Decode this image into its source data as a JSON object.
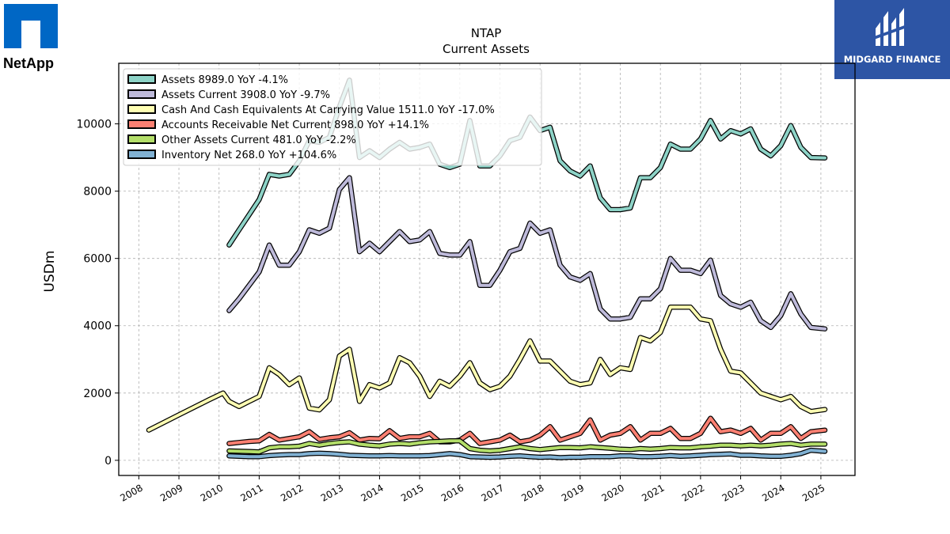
{
  "logos": {
    "left": {
      "text": "NetApp"
    },
    "right": {
      "text": "MIDGARD FINANCE"
    }
  },
  "chart_data": {
    "type": "line",
    "title": "NTAP",
    "subtitle": "Current  Assets",
    "ylabel": "USDm",
    "xlabel": "",
    "xlim": [
      2007.5,
      2025.85
    ],
    "ylim": [
      -450,
      11800
    ],
    "yticks": [
      0,
      2000,
      4000,
      6000,
      8000,
      10000
    ],
    "xticks": [
      2008,
      2009,
      2010,
      2011,
      2012,
      2013,
      2014,
      2015,
      2016,
      2017,
      2018,
      2019,
      2020,
      2021,
      2022,
      2023,
      2024,
      2025
    ],
    "grid": true,
    "legend_position": "top-left",
    "series": [
      {
        "name": "Assets  8989.0 YoY -4.1%",
        "color": "#8dd3c7",
        "x": [
          2010.25,
          2010.5,
          2010.75,
          2011.0,
          2011.25,
          2011.5,
          2011.75,
          2012.0,
          2012.25,
          2012.5,
          2012.75,
          2013.0,
          2013.25,
          2013.5,
          2013.75,
          2014.0,
          2014.25,
          2014.5,
          2014.75,
          2015.0,
          2015.25,
          2015.5,
          2015.75,
          2016.0,
          2016.25,
          2016.5,
          2016.75,
          2017.0,
          2017.25,
          2017.5,
          2017.75,
          2018.0,
          2018.25,
          2018.5,
          2018.75,
          2019.0,
          2019.25,
          2019.5,
          2019.75,
          2020.0,
          2020.25,
          2020.5,
          2020.75,
          2021.0,
          2021.25,
          2021.5,
          2021.75,
          2022.0,
          2022.25,
          2022.5,
          2022.75,
          2023.0,
          2023.25,
          2023.5,
          2023.75,
          2024.0,
          2024.25,
          2024.5,
          2024.75,
          2025.1
        ],
        "values": [
          6400,
          6850,
          7300,
          7750,
          8500,
          8450,
          8500,
          8900,
          9500,
          9450,
          9600,
          10500,
          11300,
          9000,
          9200,
          9000,
          9250,
          9450,
          9250,
          9300,
          9400,
          8800,
          8700,
          8800,
          10100,
          8750,
          8750,
          9050,
          9500,
          9600,
          10200,
          9800,
          9900,
          8900,
          8600,
          8450,
          8750,
          7800,
          7450,
          7450,
          7500,
          8400,
          8400,
          8700,
          9400,
          9250,
          9250,
          9550,
          10100,
          9550,
          9800,
          9700,
          9850,
          9250,
          9050,
          9350,
          9950,
          9300,
          9000,
          8989
        ]
      },
      {
        "name": "Assets Current  3908.0 YoY -9.7%",
        "color": "#bebada",
        "x": [
          2010.25,
          2010.5,
          2010.75,
          2011.0,
          2011.25,
          2011.5,
          2011.75,
          2012.0,
          2012.25,
          2012.5,
          2012.75,
          2013.0,
          2013.25,
          2013.5,
          2013.75,
          2014.0,
          2014.25,
          2014.5,
          2014.75,
          2015.0,
          2015.25,
          2015.5,
          2015.75,
          2016.0,
          2016.25,
          2016.5,
          2016.75,
          2017.0,
          2017.25,
          2017.5,
          2017.75,
          2018.0,
          2018.25,
          2018.5,
          2018.75,
          2019.0,
          2019.25,
          2019.5,
          2019.75,
          2020.0,
          2020.25,
          2020.5,
          2020.75,
          2021.0,
          2021.25,
          2021.5,
          2021.75,
          2022.0,
          2022.25,
          2022.5,
          2022.75,
          2023.0,
          2023.25,
          2023.5,
          2023.75,
          2024.0,
          2024.25,
          2024.5,
          2024.75,
          2025.1
        ],
        "values": [
          4450,
          4800,
          5200,
          5600,
          6400,
          5800,
          5800,
          6200,
          6850,
          6750,
          6900,
          8050,
          8400,
          6200,
          6450,
          6200,
          6500,
          6800,
          6500,
          6550,
          6800,
          6150,
          6100,
          6100,
          6500,
          5200,
          5200,
          5650,
          6200,
          6300,
          7050,
          6750,
          6850,
          5800,
          5450,
          5350,
          5550,
          4500,
          4200,
          4200,
          4250,
          4800,
          4800,
          5100,
          6000,
          5650,
          5650,
          5550,
          5950,
          4900,
          4650,
          4550,
          4700,
          4150,
          3950,
          4300,
          4950,
          4350,
          3950,
          3908
        ]
      },
      {
        "name": "Cash And Cash Equivalents At Carrying Value  1511.0 YoY -17.0%",
        "color": "#ffffb3",
        "x": [
          2008.25,
          2009.0,
          2009.75,
          2010.1,
          2010.25,
          2010.5,
          2010.75,
          2011.0,
          2011.25,
          2011.5,
          2011.75,
          2012.0,
          2012.25,
          2012.5,
          2012.75,
          2013.0,
          2013.25,
          2013.5,
          2013.75,
          2014.0,
          2014.25,
          2014.5,
          2014.75,
          2015.0,
          2015.25,
          2015.5,
          2015.75,
          2016.0,
          2016.25,
          2016.5,
          2016.75,
          2017.0,
          2017.25,
          2017.5,
          2017.75,
          2018.0,
          2018.25,
          2018.5,
          2018.75,
          2019.0,
          2019.25,
          2019.5,
          2019.75,
          2020.0,
          2020.25,
          2020.5,
          2020.75,
          2021.0,
          2021.25,
          2021.5,
          2021.75,
          2022.0,
          2022.25,
          2022.5,
          2022.75,
          2023.0,
          2023.25,
          2023.5,
          2023.75,
          2024.0,
          2024.25,
          2024.5,
          2024.75,
          2025.1
        ],
        "values": [
          900,
          1350,
          1800,
          2000,
          1750,
          1600,
          1750,
          1900,
          2750,
          2550,
          2250,
          2450,
          1550,
          1500,
          1800,
          3100,
          3300,
          1750,
          2250,
          2150,
          2300,
          3050,
          2900,
          2500,
          1900,
          2350,
          2200,
          2500,
          2900,
          2300,
          2100,
          2200,
          2500,
          3000,
          3550,
          2950,
          2950,
          2650,
          2350,
          2250,
          2300,
          3000,
          2550,
          2750,
          2700,
          3650,
          3550,
          3800,
          4550,
          4550,
          4550,
          4200,
          4150,
          3300,
          2650,
          2600,
          2300,
          2000,
          1900,
          1800,
          1900,
          1600,
          1450,
          1511
        ]
      },
      {
        "name": "Accounts Receivable Net Current  898.0 YoY +14.1%",
        "color": "#fb8072",
        "x": [
          2010.25,
          2010.5,
          2010.75,
          2011.0,
          2011.25,
          2011.5,
          2011.75,
          2012.0,
          2012.25,
          2012.5,
          2012.75,
          2013.0,
          2013.25,
          2013.5,
          2013.75,
          2014.0,
          2014.25,
          2014.5,
          2014.75,
          2015.0,
          2015.25,
          2015.5,
          2015.75,
          2016.0,
          2016.25,
          2016.5,
          2016.75,
          2017.0,
          2017.25,
          2017.5,
          2017.75,
          2018.0,
          2018.25,
          2018.5,
          2018.75,
          2019.0,
          2019.25,
          2019.5,
          2019.75,
          2020.0,
          2020.25,
          2020.5,
          2020.75,
          2021.0,
          2021.25,
          2021.5,
          2021.75,
          2022.0,
          2022.25,
          2022.5,
          2022.75,
          2023.0,
          2023.25,
          2023.5,
          2023.75,
          2024.0,
          2024.25,
          2024.5,
          2024.75,
          2025.1
        ],
        "values": [
          500,
          530,
          560,
          580,
          770,
          600,
          650,
          700,
          850,
          620,
          670,
          700,
          820,
          600,
          650,
          640,
          880,
          650,
          700,
          700,
          800,
          550,
          550,
          600,
          800,
          500,
          550,
          600,
          750,
          550,
          600,
          750,
          1000,
          600,
          700,
          800,
          1200,
          600,
          750,
          800,
          1000,
          600,
          800,
          800,
          950,
          650,
          650,
          800,
          1250,
          850,
          900,
          800,
          950,
          600,
          800,
          800,
          1000,
          650,
          850,
          898
        ]
      },
      {
        "name": "Other Assets Current  481.0 YoY -2.2%",
        "color": "#b3de69",
        "x": [
          2010.25,
          2010.5,
          2010.75,
          2011.0,
          2011.25,
          2011.5,
          2011.75,
          2012.0,
          2012.25,
          2012.5,
          2012.75,
          2013.0,
          2013.25,
          2013.5,
          2013.75,
          2014.0,
          2014.25,
          2014.5,
          2014.75,
          2015.0,
          2015.25,
          2015.5,
          2015.75,
          2016.0,
          2016.25,
          2016.5,
          2016.75,
          2017.0,
          2017.25,
          2017.5,
          2017.75,
          2018.0,
          2018.25,
          2018.5,
          2018.75,
          2019.0,
          2019.25,
          2019.5,
          2019.75,
          2020.0,
          2020.25,
          2020.5,
          2020.75,
          2021.0,
          2021.25,
          2021.5,
          2021.75,
          2022.0,
          2022.25,
          2022.5,
          2022.75,
          2023.0,
          2023.25,
          2023.5,
          2023.75,
          2024.0,
          2024.25,
          2024.5,
          2024.75,
          2025.1
        ],
        "values": [
          280,
          270,
          260,
          250,
          370,
          400,
          400,
          420,
          500,
          450,
          500,
          530,
          550,
          480,
          450,
          430,
          480,
          500,
          480,
          520,
          550,
          560,
          580,
          580,
          350,
          300,
          280,
          300,
          350,
          400,
          350,
          320,
          350,
          380,
          380,
          370,
          400,
          380,
          360,
          330,
          320,
          350,
          330,
          350,
          380,
          370,
          370,
          400,
          420,
          450,
          450,
          430,
          450,
          430,
          450,
          480,
          500,
          450,
          480,
          481
        ]
      },
      {
        "name": "Inventory Net  268.0 YoY +104.6%",
        "color": "#80b1d3",
        "x": [
          2010.25,
          2010.5,
          2010.75,
          2011.0,
          2011.25,
          2011.5,
          2011.75,
          2012.0,
          2012.25,
          2012.5,
          2012.75,
          2013.0,
          2013.25,
          2013.5,
          2013.75,
          2014.0,
          2014.25,
          2014.5,
          2014.75,
          2015.0,
          2015.25,
          2015.5,
          2015.75,
          2016.0,
          2016.25,
          2016.5,
          2016.75,
          2017.0,
          2017.25,
          2017.5,
          2017.75,
          2018.0,
          2018.25,
          2018.5,
          2018.75,
          2019.0,
          2019.25,
          2019.5,
          2019.75,
          2020.0,
          2020.25,
          2020.5,
          2020.75,
          2021.0,
          2021.25,
          2021.5,
          2021.75,
          2022.0,
          2022.25,
          2022.5,
          2022.75,
          2023.0,
          2023.25,
          2023.5,
          2023.75,
          2024.0,
          2024.25,
          2024.5,
          2024.75,
          2025.1
        ],
        "values": [
          130,
          120,
          110,
          110,
          140,
          160,
          170,
          170,
          200,
          210,
          200,
          180,
          150,
          140,
          130,
          130,
          140,
          130,
          130,
          130,
          140,
          170,
          200,
          170,
          110,
          100,
          90,
          100,
          120,
          130,
          110,
          90,
          100,
          80,
          90,
          90,
          110,
          110,
          110,
          130,
          130,
          110,
          110,
          120,
          140,
          120,
          130,
          150,
          170,
          180,
          190,
          150,
          150,
          130,
          120,
          120,
          150,
          200,
          300,
          268
        ]
      }
    ]
  }
}
